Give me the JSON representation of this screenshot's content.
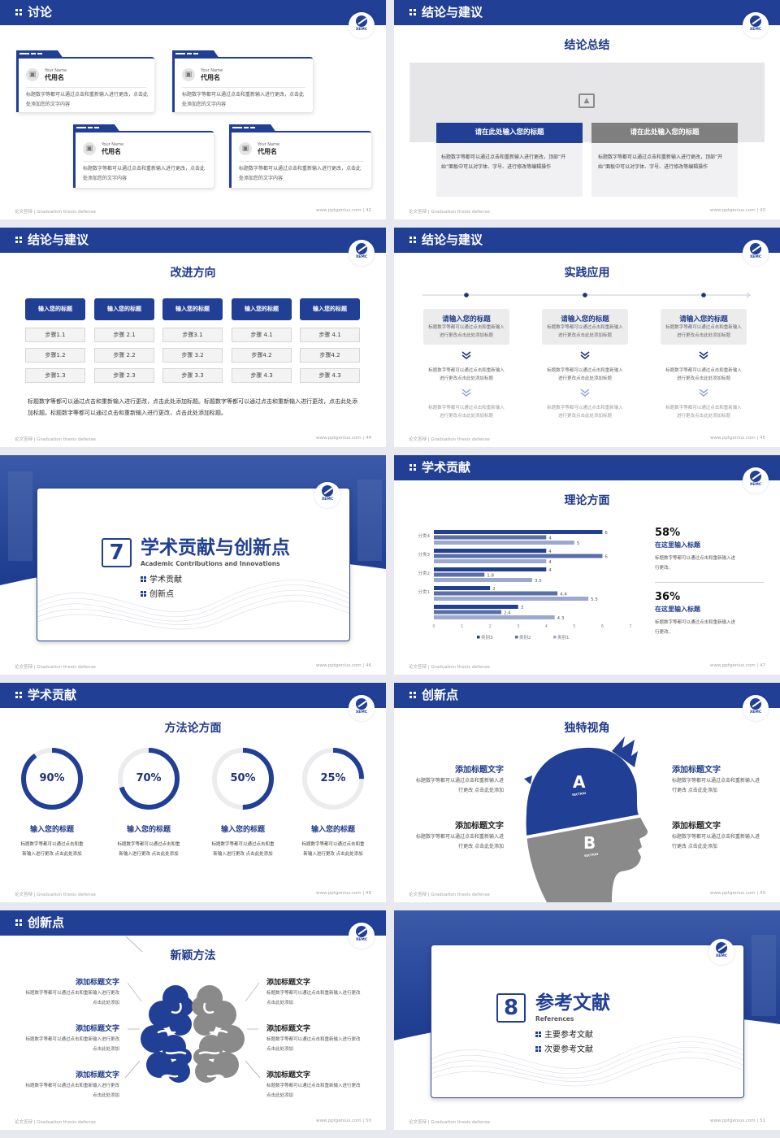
{
  "footer": {
    "left": "论文答辩 | Graduation thesis defense",
    "site": "www.pptgenius.com | "
  },
  "logo": "XEMC",
  "colors": {
    "brand_blue": "#213f94",
    "gray": "#8c8c8c",
    "light_gray": "#ececec"
  },
  "s42": {
    "page": "42",
    "title": "讨论",
    "cards": [
      {
        "name_en": "Your Name",
        "name": "代用名",
        "text": "标题数字等都可以通过点击和重新输入进行更改，点击此处添加您的文字内容"
      },
      {
        "name_en": "Your Name",
        "name": "代用名",
        "text": "标题数字等都可以通过点击和重新输入进行更改，点击此处添加您的文字内容"
      },
      {
        "name_en": "Your Name",
        "name": "代用名",
        "text": "标题数字等都可以通过点击和重新输入进行更改，点击此处添加您的文字内容"
      },
      {
        "name_en": "Your Name",
        "name": "代用名",
        "text": "标题数字等都可以通过点击和重新输入进行更改，点击此处添加您的文字内容"
      }
    ]
  },
  "s43": {
    "page": "43",
    "title": "结论与建议",
    "subtitle": "结论总结",
    "boxes": [
      {
        "heading": "请在此处输入您的标题",
        "text": "标题数字等都可以通过点击和重新输入进行更改，顶部“开始”面板中可以对字体、字号、进行修改等编辑操作"
      },
      {
        "heading": "请在此处输入您的标题",
        "text": "标题数字等都可以通过点击和重新输入进行更改，顶部“开始”面板中可以对字体、字号、进行修改等编辑操作"
      }
    ]
  },
  "s44": {
    "page": "44",
    "title": "结论与建议",
    "subtitle": "改进方向",
    "columns": [
      {
        "heading": "输入您的标题",
        "steps": [
          "步骤1.1",
          "步骤1.2",
          "步骤1.3"
        ]
      },
      {
        "heading": "输入您的标题",
        "steps": [
          "步骤 2.1",
          "步骤 2.2",
          "步骤 2.3"
        ]
      },
      {
        "heading": "输入您的标题",
        "steps": [
          "步骤3.1",
          "步骤 3.2",
          "步骤 3.3"
        ]
      },
      {
        "heading": "输入您的标题",
        "steps": [
          "步骤 4.1",
          "步骤4.2",
          "步骤 4.3"
        ]
      },
      {
        "heading": "输入您的标题",
        "steps": [
          "步骤 4.1",
          "步骤4.2",
          "步骤 4.3"
        ]
      }
    ],
    "text": "标题数字等都可以通过点击和重新输入进行更改，点击此处添加标题。标题数字等都可以通过点击和重新输入进行更改，点击此处添加标题。标题数字等都可以通过点击和重新输入进行更改，点击此处添加标题。"
  },
  "s45": {
    "page": "45",
    "title": "结论与建议",
    "subtitle": "实践应用",
    "columns": [
      {
        "heading": "请输入您的标题",
        "text": "标题数字等都可以通过点击和重新输入进行更改点击此处添加标题",
        "step2": "标题数字等都可以通过点击和重新输入进行更改点击此处添加标题",
        "step3": "标题数字等都可以通过点击和重新输入进行更改点击此处添加标题"
      },
      {
        "heading": "请输入您的标题",
        "text": "标题数字等都可以通过点击和重新输入进行更改点击此处添加标题",
        "step2": "标题数字等都可以通过点击和重新输入进行更改点击此处添加标题",
        "step3": "标题数字等都可以通过点击和重新输入进行更改点击此处添加标题"
      },
      {
        "heading": "请输入您的标题",
        "text": "标题数字等都可以通过点击和重新输入进行更改点击此处添加标题",
        "step2": "标题数字等都可以通过点击和重新输入进行更改点击此处添加标题",
        "step3": "标题数字等都可以通过点击和重新输入进行更改点击此处添加标题"
      }
    ]
  },
  "s46": {
    "page": "46",
    "number": "7",
    "title": "学术贡献与创新点",
    "subtitle_en": "Academic Contributions and Innovations",
    "items": [
      "学术贡献",
      "创新点"
    ]
  },
  "s47": {
    "page": "47",
    "title": "学术贡献",
    "subtitle": "理论方面",
    "stats": [
      {
        "value": "58%",
        "heading": "在这里输入标题",
        "text": "标题数字等都可以通过点击和重新输入进行更改。"
      },
      {
        "value": "36%",
        "heading": "在这里输入标题",
        "text": "标题数字等都可以通过点击和重新输入进行更改。"
      }
    ]
  },
  "s48": {
    "page": "48",
    "title": "学术贡献",
    "subtitle": "方法论方面",
    "rings": [
      {
        "percent": 90,
        "label": "90%",
        "heading": "输入您的标题",
        "text": "标题数字等都可以通过点击和重新输入进行更改 点击此处添加"
      },
      {
        "percent": 70,
        "label": "70%",
        "heading": "输入您的标题",
        "text": "标题数字等都可以通过点击和重新输入进行更改 点击此处添加"
      },
      {
        "percent": 50,
        "label": "50%",
        "heading": "输入您的标题",
        "text": "标题数字等都可以通过点击和重新输入进行更改 点击此处添加"
      },
      {
        "percent": 25,
        "label": "25%",
        "heading": "输入您的标题",
        "text": "标题数字等都可以通过点击和重新输入进行更改 点击此处添加"
      }
    ]
  },
  "s49": {
    "page": "49",
    "title": "创新点",
    "subtitle": "独特视角",
    "head": {
      "a": "A",
      "b": "B",
      "section": "SECTION"
    },
    "items": [
      {
        "heading": "添加标题文字",
        "text": "标题数字等都可以通过点击和重新输入进行更改 点击此处添加"
      },
      {
        "heading": "添加标题文字",
        "text": "标题数字等都可以通过点击和重新输入进行更改 点击此处添加"
      },
      {
        "heading": "添加标题文字",
        "text": "标题数字等都可以通过点击和重新输入进行更改 点击此处添加"
      },
      {
        "heading": "添加标题文字",
        "text": "标题数字等都可以通过点击和重新输入进行更改 点击此处添加"
      }
    ]
  },
  "s50": {
    "page": "50",
    "title": "创新点",
    "subtitle": "新颖方法",
    "items": [
      {
        "heading": "添加标题文字",
        "text": "标题数字等都可以通过点击和重新输入进行更改 点击此处添加"
      },
      {
        "heading": "添加标题文字",
        "text": "标题数字等都可以通过点击和重新输入进行更改 点击此处添加"
      },
      {
        "heading": "添加标题文字",
        "text": "标题数字等都可以通过点击和重新输入进行更改 点击此处添加"
      },
      {
        "heading": "添加标题文字",
        "text": "标题数字等都可以通过点击和重新输入进行更改 点击此处添加"
      },
      {
        "heading": "添加标题文字",
        "text": "标题数字等都可以通过点击和重新输入进行更改 点击此处添加"
      },
      {
        "heading": "添加标题文字",
        "text": "标题数字等都可以通过点击和重新输入进行更改 点击此处添加"
      }
    ]
  },
  "s51": {
    "page": "51",
    "number": "8",
    "title": "参考文献",
    "subtitle_en": "References",
    "items": [
      "主要参考文献",
      "次要参考文献"
    ]
  },
  "chart_data": {
    "type": "bar",
    "orientation": "horizontal",
    "categories": [
      "分类4",
      "分类3",
      "分类2",
      "分类1",
      ""
    ],
    "series": [
      {
        "name": "类别3",
        "color": "#213f94",
        "values": [
          6,
          4,
          4,
          2,
          3
        ]
      },
      {
        "name": "类别2",
        "color": "#5a6ea8",
        "values": [
          4,
          6,
          1.8,
          4.4,
          2.4
        ]
      },
      {
        "name": "类别1",
        "color": "#9ca8cd",
        "values": [
          5,
          4,
          3.5,
          5.5,
          4.3
        ]
      }
    ],
    "xlim": [
      0,
      7
    ],
    "xticks": [
      "0",
      "1",
      "2",
      "3",
      "4",
      "5",
      "6",
      "7"
    ],
    "grid": false,
    "legend": "bottom",
    "data_labels": true
  }
}
